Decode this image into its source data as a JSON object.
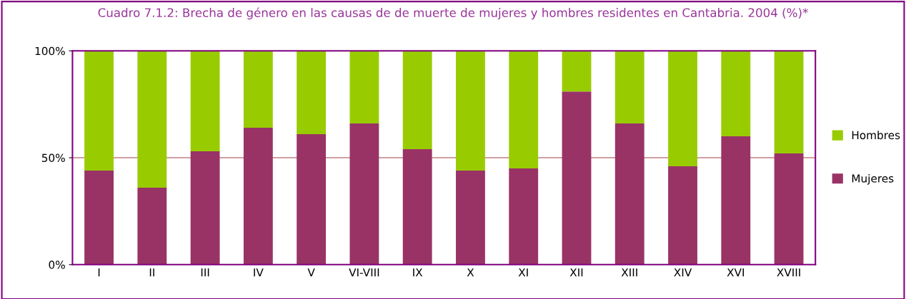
{
  "chart_data": {
    "type": "bar",
    "title": "Cuadro 7.1.2: Brecha de género en las causas de de muerte de mujeres y hombres residentes en Cantabria. 2004 (%)*",
    "categories": [
      "I",
      "II",
      "III",
      "IV",
      "V",
      "VI-VIII",
      "IX",
      "X",
      "XI",
      "XII",
      "XIII",
      "XIV",
      "XVI",
      "XVIII"
    ],
    "stacked": true,
    "series": [
      {
        "name": "Mujeres",
        "color": "#993366",
        "values": [
          44,
          36,
          53,
          64,
          61,
          66,
          54,
          44,
          45,
          81,
          66,
          46,
          60,
          52
        ]
      },
      {
        "name": "Hombres",
        "color": "#99cc00",
        "values": [
          56,
          64,
          47,
          36,
          39,
          34,
          46,
          56,
          55,
          19,
          34,
          54,
          40,
          48
        ]
      }
    ],
    "ylim": [
      0,
      100
    ],
    "yticks": [
      {
        "value": 0,
        "label": "0%"
      },
      {
        "value": 50,
        "label": "50%"
      },
      {
        "value": 100,
        "label": "100%"
      }
    ],
    "ref_lines": [
      {
        "axis": "y",
        "value": 50,
        "color": "#c08080"
      }
    ],
    "legend": "right"
  }
}
